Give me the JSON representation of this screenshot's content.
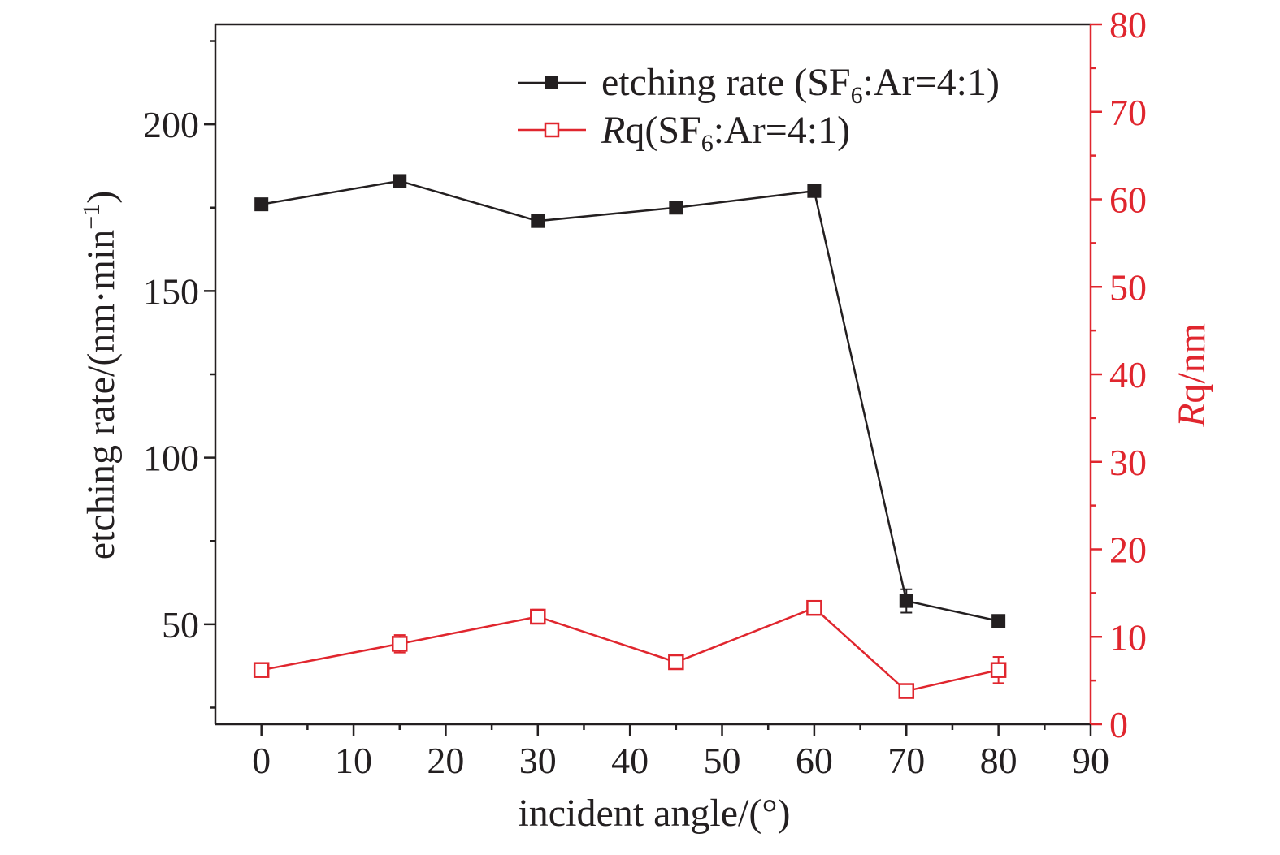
{
  "chart_data": {
    "type": "line",
    "xlabel": "incident angle/(°)",
    "ylabel_left": {
      "main": "etching rate/(nm·min",
      "sup": "−1",
      "close": ")"
    },
    "ylabel_right": {
      "italic": "R",
      "rest": "q/nm"
    },
    "xlim": [
      -5,
      90
    ],
    "ylim_left": [
      20,
      230
    ],
    "ylim_right": [
      0,
      80
    ],
    "x_ticks": [
      0,
      10,
      20,
      30,
      40,
      50,
      60,
      70,
      80,
      90
    ],
    "y_left_ticks": [
      50,
      100,
      150,
      200
    ],
    "y_right_ticks": [
      0,
      10,
      20,
      30,
      40,
      50,
      60,
      70,
      80
    ],
    "grid": false,
    "legend_position": "top-right",
    "colors": {
      "left_axis": "#231f20",
      "right_axis": "#e0262e"
    },
    "series": [
      {
        "name": "etching rate (SF6:Ar=4:1)",
        "legend": {
          "pre": "etching rate (SF",
          "sub": "6",
          "post": ":Ar=4:1)"
        },
        "axis": "left",
        "marker": "filled-square",
        "color": "#231f20",
        "x": [
          0,
          15,
          30,
          45,
          60,
          70,
          80
        ],
        "y": [
          176,
          183,
          171,
          175,
          180,
          57,
          51
        ],
        "err": [
          0.8,
          0.8,
          0.8,
          0.8,
          0.8,
          3.5,
          1
        ]
      },
      {
        "name": "Rq(SF6:Ar=4:1)",
        "legend": {
          "italic": "R",
          "pre": "q(SF",
          "sub": "6",
          "post": ":Ar=4:1)"
        },
        "axis": "right",
        "marker": "open-square",
        "color": "#e0262e",
        "x": [
          0,
          15,
          30,
          45,
          60,
          70,
          80
        ],
        "y": [
          6.2,
          9.2,
          12.3,
          7.1,
          13.3,
          3.8,
          6.2
        ],
        "err": [
          0.5,
          1,
          0.8,
          0.4,
          0.4,
          0.4,
          1.5
        ]
      }
    ]
  }
}
